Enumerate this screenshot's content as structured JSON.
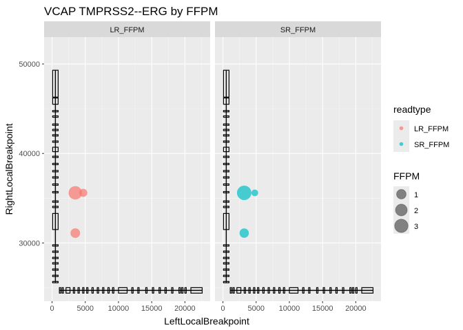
{
  "chart_data": {
    "type": "scatter",
    "title": "VCAP TMPRSS2--ERG by FFPM",
    "xlabel": "LeftLocalBreakpoint",
    "ylabel": "RightLocalBreakpoint",
    "xlim": [
      -1200,
      23800
    ],
    "ylim": [
      23500,
      53000
    ],
    "x_ticks": [
      0,
      5000,
      10000,
      15000,
      20000
    ],
    "y_ticks": [
      30000,
      40000,
      50000
    ],
    "x_tick_labels": [
      "0",
      "5000",
      "10000",
      "15000",
      "20000"
    ],
    "y_tick_labels": [
      "30000",
      "40000",
      "50000"
    ],
    "grid": true,
    "facets": [
      "LR_FFPM",
      "SR_FFPM"
    ],
    "series_colors": {
      "LR_FFPM": "#F8766D",
      "SR_FFPM": "#00BFC4"
    },
    "points": [
      {
        "facet": "LR_FFPM",
        "x": 3500,
        "y": 35600,
        "ffpm": 3.0
      },
      {
        "facet": "LR_FFPM",
        "x": 4700,
        "y": 35600,
        "ffpm": 0.5
      },
      {
        "facet": "LR_FFPM",
        "x": 3500,
        "y": 31100,
        "ffpm": 1.0
      },
      {
        "facet": "SR_FFPM",
        "x": 3200,
        "y": 35600,
        "ffpm": 3.7
      },
      {
        "facet": "SR_FFPM",
        "x": 4800,
        "y": 35600,
        "ffpm": 0.2
      },
      {
        "facet": "SR_FFPM",
        "x": 3200,
        "y": 31100,
        "ffpm": 0.9
      }
    ],
    "gene_structure_vertical": {
      "x": 500,
      "exons": [
        [
          25600,
          25700
        ],
        [
          26300,
          26400
        ],
        [
          27000,
          27100
        ],
        [
          27700,
          27800
        ],
        [
          28300,
          28400
        ],
        [
          29000,
          29100
        ],
        [
          29700,
          29800
        ],
        [
          31500,
          33300
        ],
        [
          34000,
          34100
        ],
        [
          34600,
          34700
        ],
        [
          35600,
          35750
        ],
        [
          36500,
          36600
        ],
        [
          37300,
          37400
        ],
        [
          38000,
          38100
        ],
        [
          38800,
          38900
        ],
        [
          39600,
          39700
        ],
        [
          40200,
          40700
        ],
        [
          41300,
          41400
        ],
        [
          42000,
          42100
        ],
        [
          42600,
          42700
        ],
        [
          43200,
          43300
        ],
        [
          44100,
          44200
        ],
        [
          44700,
          44800
        ],
        [
          45500,
          46200
        ],
        [
          46300,
          49300
        ]
      ]
    },
    "gene_structure_horizontal": {
      "y": 24700,
      "exons": [
        [
          1100,
          1200
        ],
        [
          1500,
          1600
        ],
        [
          2100,
          2700
        ],
        [
          3200,
          3300
        ],
        [
          3900,
          4000
        ],
        [
          4600,
          4700
        ],
        [
          5200,
          5300
        ],
        [
          6000,
          6100
        ],
        [
          6800,
          6900
        ],
        [
          7600,
          7700
        ],
        [
          8400,
          8500
        ],
        [
          9100,
          9200
        ],
        [
          10000,
          11300
        ],
        [
          12000,
          12100
        ],
        [
          12900,
          13000
        ],
        [
          14100,
          14200
        ],
        [
          15100,
          15200
        ],
        [
          16100,
          16200
        ],
        [
          17000,
          17100
        ],
        [
          18000,
          18100
        ],
        [
          19100,
          19200
        ],
        [
          19500,
          19600
        ],
        [
          20000,
          20100
        ],
        [
          20900,
          22600
        ]
      ]
    },
    "legend": {
      "placement": "right",
      "color_title": "readtype",
      "color_entries": [
        "LR_FFPM",
        "SR_FFPM"
      ],
      "size_title": "FFPM",
      "size_entries": [
        {
          "label": "1",
          "value": 1
        },
        {
          "label": "2",
          "value": 2
        },
        {
          "label": "3",
          "value": 3
        }
      ]
    }
  }
}
